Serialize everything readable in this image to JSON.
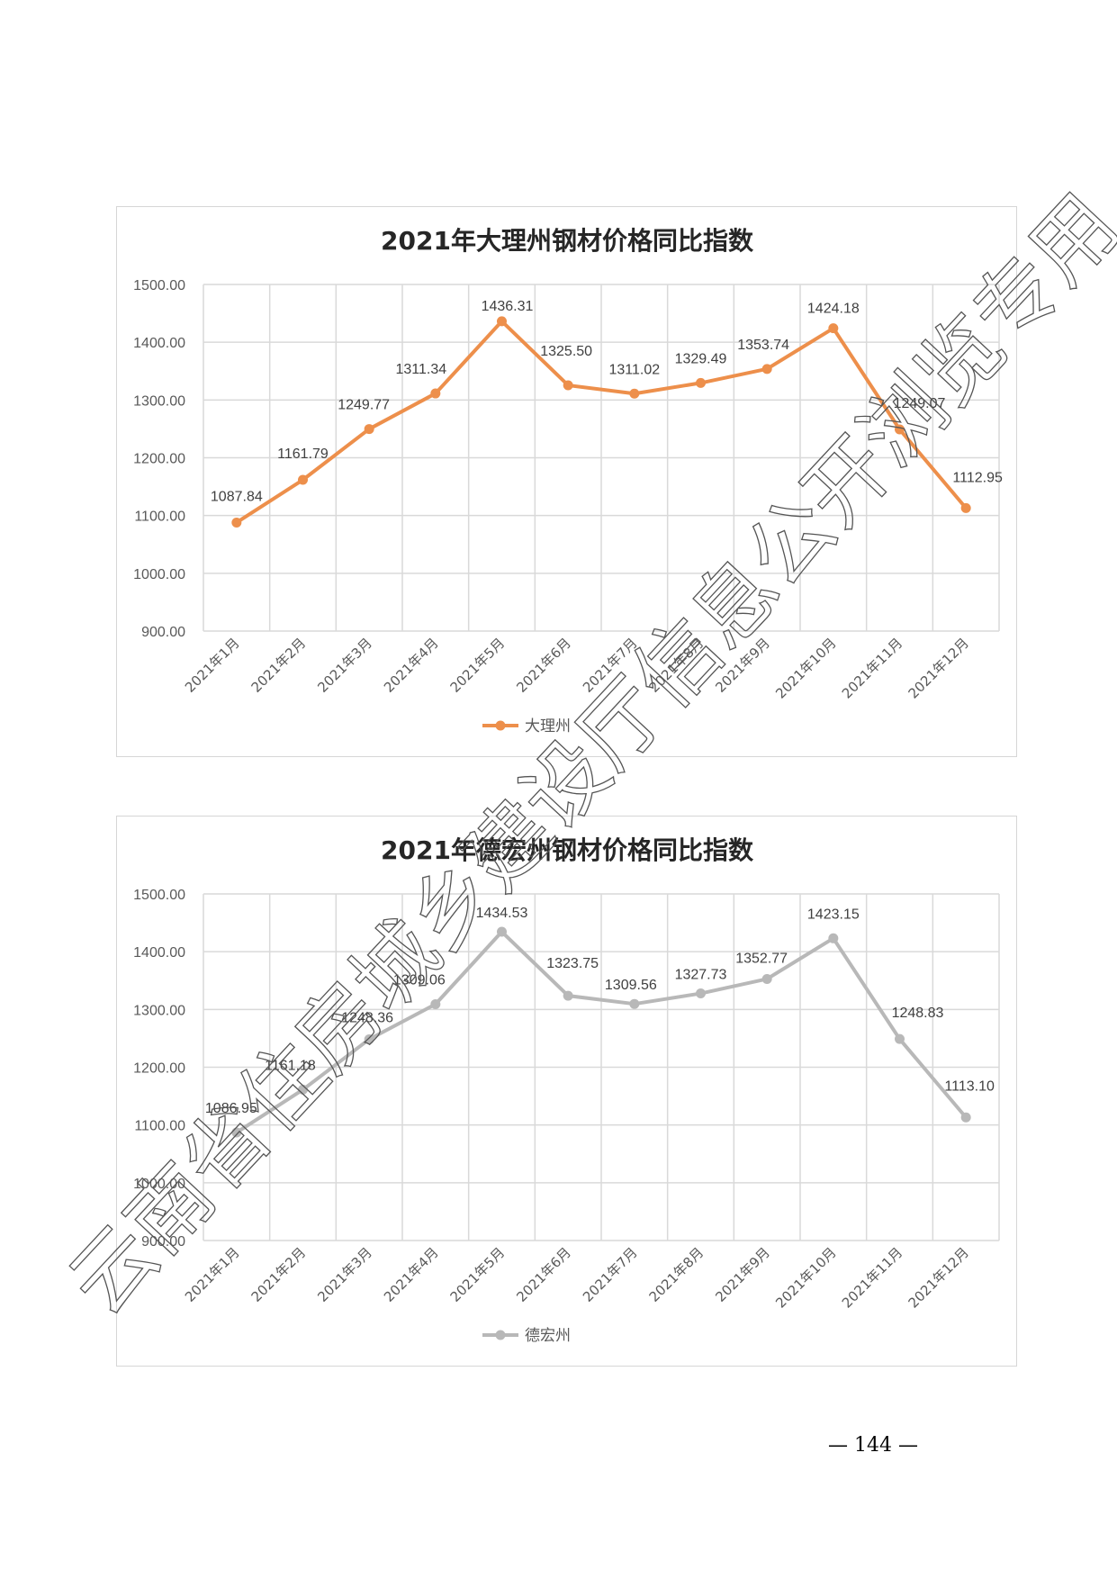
{
  "chart_data": [
    {
      "type": "line",
      "title": "2021年大理州钢材价格同比指数",
      "categories": [
        "2021年1月",
        "2021年2月",
        "2021年3月",
        "2021年4月",
        "2021年5月",
        "2021年6月",
        "2021年7月",
        "2021年8月",
        "2021年9月",
        "2021年10月",
        "2021年11月",
        "2021年12月"
      ],
      "series": [
        {
          "name": "大理州",
          "values": [
            1087.84,
            1161.79,
            1249.77,
            1311.34,
            1436.31,
            1325.5,
            1311.02,
            1329.49,
            1353.74,
            1424.18,
            1249.07,
            1112.95
          ],
          "color": "#ED8F4B"
        }
      ],
      "value_labels": [
        "1087.84",
        "1161.79",
        "1249.77",
        "1311.34",
        "1436.31",
        "1325.50",
        "1311.02",
        "1329.49",
        "1353.74",
        "1424.18",
        "1249.07",
        "1112.95"
      ],
      "yticks": [
        "1500.00",
        "1400.00",
        "1300.00",
        "1200.00",
        "1100.00",
        "1000.00",
        "900.00"
      ],
      "ylim": [
        900,
        1500
      ],
      "xlabel": "",
      "ylabel": "",
      "grid": true,
      "legend": "bottom-center"
    },
    {
      "type": "line",
      "title": "2021年德宏州钢材价格同比指数",
      "categories": [
        "2021年1月",
        "2021年2月",
        "2021年3月",
        "2021年4月",
        "2021年5月",
        "2021年6月",
        "2021年7月",
        "2021年8月",
        "2021年9月",
        "2021年10月",
        "2021年11月",
        "2021年12月"
      ],
      "series": [
        {
          "name": "德宏州",
          "values": [
            1086.95,
            1161.18,
            1248.36,
            1309.06,
            1434.53,
            1323.75,
            1309.56,
            1327.73,
            1352.77,
            1423.15,
            1248.83,
            1113.1
          ],
          "color": "#B8B8B8"
        }
      ],
      "value_labels": [
        "1086.95",
        "1161.18",
        "1248.36",
        "1309.06",
        "1434.53",
        "1323.75",
        "1309.56",
        "1327.73",
        "1352.77",
        "1423.15",
        "1248.83",
        "1113.10"
      ],
      "yticks": [
        "1500.00",
        "1400.00",
        "1300.00",
        "1200.00",
        "1100.00",
        "1000.00",
        "900.00"
      ],
      "ylim": [
        900,
        1500
      ],
      "xlabel": "",
      "ylabel": "",
      "grid": true,
      "legend": "bottom-center"
    }
  ],
  "page_number": "— 144 —",
  "watermark": "云南省住房城乡建设厅信息公开浏览专用"
}
